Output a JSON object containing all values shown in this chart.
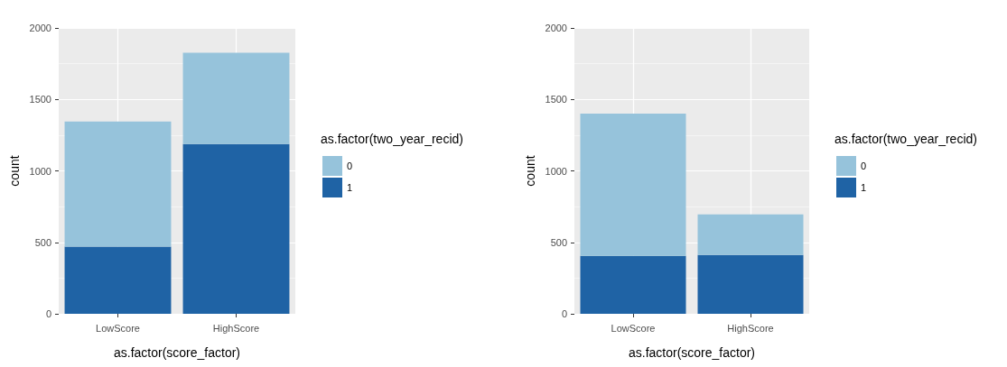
{
  "chart_data": [
    {
      "type": "bar",
      "categories": [
        "LowScore",
        "HighScore"
      ],
      "stacked": true,
      "xlabel": "as.factor(score_factor)",
      "ylabel": "count",
      "legend_title": "as.factor(two_year_recid)",
      "legend": "right",
      "grid": true,
      "ylim": [
        0,
        2000
      ],
      "yticks": [
        0,
        500,
        1000,
        1500,
        2000
      ],
      "series": [
        {
          "name": "1",
          "color": "#1f63a5",
          "values": [
            470,
            1187
          ]
        },
        {
          "name": "0",
          "color": "#96c3db",
          "values": [
            875,
            639
          ]
        }
      ]
    },
    {
      "type": "bar",
      "categories": [
        "LowScore",
        "HighScore"
      ],
      "stacked": true,
      "xlabel": "as.factor(score_factor)",
      "ylabel": "count",
      "legend_title": "as.factor(two_year_recid)",
      "legend": "right",
      "grid": true,
      "ylim": [
        0,
        2000
      ],
      "yticks": [
        0,
        500,
        1000,
        1500,
        2000
      ],
      "series": [
        {
          "name": "1",
          "color": "#1f63a5",
          "values": [
            405,
            412
          ]
        },
        {
          "name": "0",
          "color": "#96c3db",
          "values": [
            996,
            283
          ]
        }
      ]
    }
  ]
}
